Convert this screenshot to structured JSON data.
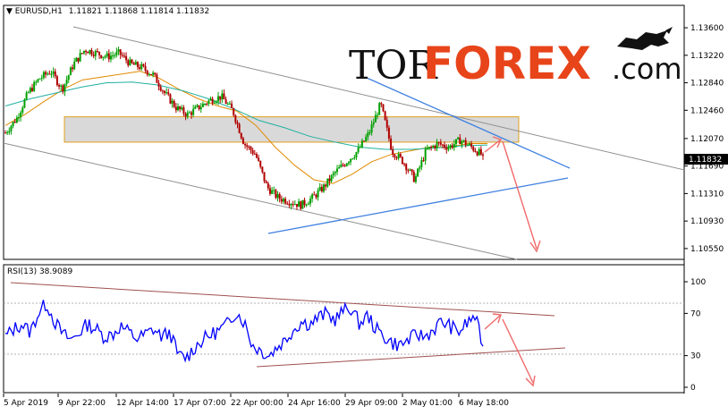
{
  "chart_data": [
    {
      "type": "candlestick",
      "title": "EURUSD,H1",
      "ohlc_header": "1.11821 1.11868 1.11814 1.11832",
      "last_price": "1.11832",
      "y_ticks": [
        "1.13600",
        "1.13220",
        "1.12840",
        "1.12460",
        "1.12070",
        "1.11690",
        "1.11310",
        "1.10930",
        "1.10550"
      ],
      "ylim": [
        1.1045,
        1.1386
      ],
      "x_ticks": [
        "5 Apr 2019",
        "9 Apr 22:00",
        "12 Apr 14:00",
        "17 Apr 07:00",
        "22 Apr 00:00",
        "24 Apr 16:00",
        "29 Apr 09:00",
        "2 May 01:00",
        "6 May 18:00"
      ],
      "close_path": [
        1.1215,
        1.1235,
        1.127,
        1.129,
        1.13,
        1.1275,
        1.131,
        1.133,
        1.1325,
        1.132,
        1.1325,
        1.131,
        1.1305,
        1.1295,
        1.127,
        1.125,
        1.124,
        1.125,
        1.126,
        1.1265,
        1.1245,
        1.12,
        1.1185,
        1.114,
        1.1125,
        1.112,
        1.1115,
        1.1125,
        1.114,
        1.116,
        1.1175,
        1.119,
        1.1215,
        1.1255,
        1.119,
        1.1175,
        1.115,
        1.119,
        1.12,
        1.1195,
        1.1205,
        1.1195,
        1.11832
      ],
      "highlight_band": [
        1.1202,
        1.1237
      ],
      "series": [
        {
          "name": "",
          "color": "#e08a00",
          "values": [
            1.1225,
            1.124,
            1.1258,
            1.1275,
            1.1288,
            1.1292,
            1.1296,
            1.13,
            1.129,
            1.1275,
            1.1262,
            1.1252,
            1.1245,
            1.1225,
            1.1195,
            1.117,
            1.115,
            1.1145,
            1.1158,
            1.1175,
            1.1185,
            1.119,
            1.1195,
            1.1195,
            1.12,
            1.12
          ]
        },
        {
          "name": "",
          "color": "#20b0a0",
          "values": [
            1.1252,
            1.1262,
            1.127,
            1.1278,
            1.1284,
            1.1285,
            1.1281,
            1.1273,
            1.1262,
            1.1248,
            1.1232,
            1.1222,
            1.121,
            1.1202,
            1.1195,
            1.1192,
            1.1192,
            1.1194,
            1.1197,
            1.1198
          ]
        }
      ]
    },
    {
      "type": "line",
      "title": "RSI(13) 38.9089",
      "y_ticks": [
        "100",
        "70",
        "30",
        "0"
      ],
      "ylim": [
        0,
        100
      ],
      "values": [
        48,
        55,
        60,
        52,
        70,
        80,
        62,
        50,
        45,
        52,
        60,
        55,
        48,
        50,
        58,
        52,
        46,
        50,
        55,
        48,
        52,
        30,
        28,
        38,
        45,
        50,
        54,
        60,
        72,
        62,
        40,
        35,
        30,
        38,
        45,
        55,
        62,
        60,
        66,
        70,
        64,
        72,
        75,
        60,
        68,
        55,
        48,
        42,
        40,
        45,
        50,
        48,
        55,
        62,
        58,
        52,
        60,
        68,
        38.9
      ]
    }
  ],
  "watermark": {
    "tor": "TOR",
    "forex": "FOREX",
    "com": ".com",
    "icon": "bull-icon"
  },
  "colors": {
    "bull_candle": "#00a000",
    "bear_candle": "#b00000",
    "channel_grey": "#909090",
    "trend_blue": "#4080e0",
    "forecast_red": "#f06a6a",
    "rsi_line": "#0000ff",
    "rsi_channel": "#a05050",
    "band_fill": "#cccccc",
    "band_border": "#e0a020"
  }
}
